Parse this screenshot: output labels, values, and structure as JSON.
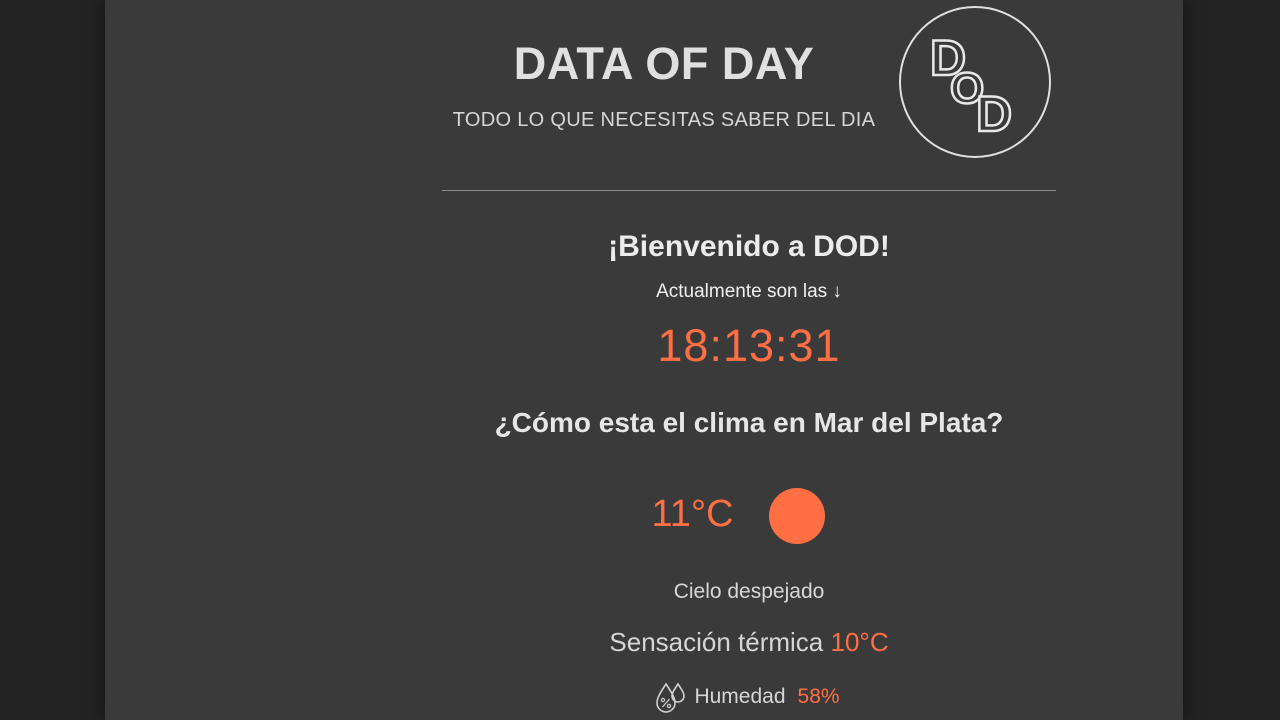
{
  "header": {
    "title": "DATA OF DAY",
    "subtitle": "TODO LO QUE NECESITAS SABER DEL DIA",
    "logo_letters": [
      "D",
      "O",
      "D"
    ]
  },
  "welcome": {
    "heading": "¡Bienvenido a DOD!",
    "now_label": "Actualmente son las ↓",
    "time": "18:13:31"
  },
  "weather": {
    "question": "¿Cómo esta el clima en Mar del Plata?",
    "temperature": "11°C",
    "icon": "sun-icon",
    "description": "Cielo despejado",
    "feels_label": "Sensación térmica",
    "feels_value": "10°C",
    "humidity_label": "Humedad",
    "humidity_value": "58%"
  },
  "colors": {
    "background": "#3a3a3a",
    "accent": "#ff6f43",
    "text": "#e0e0e0"
  }
}
